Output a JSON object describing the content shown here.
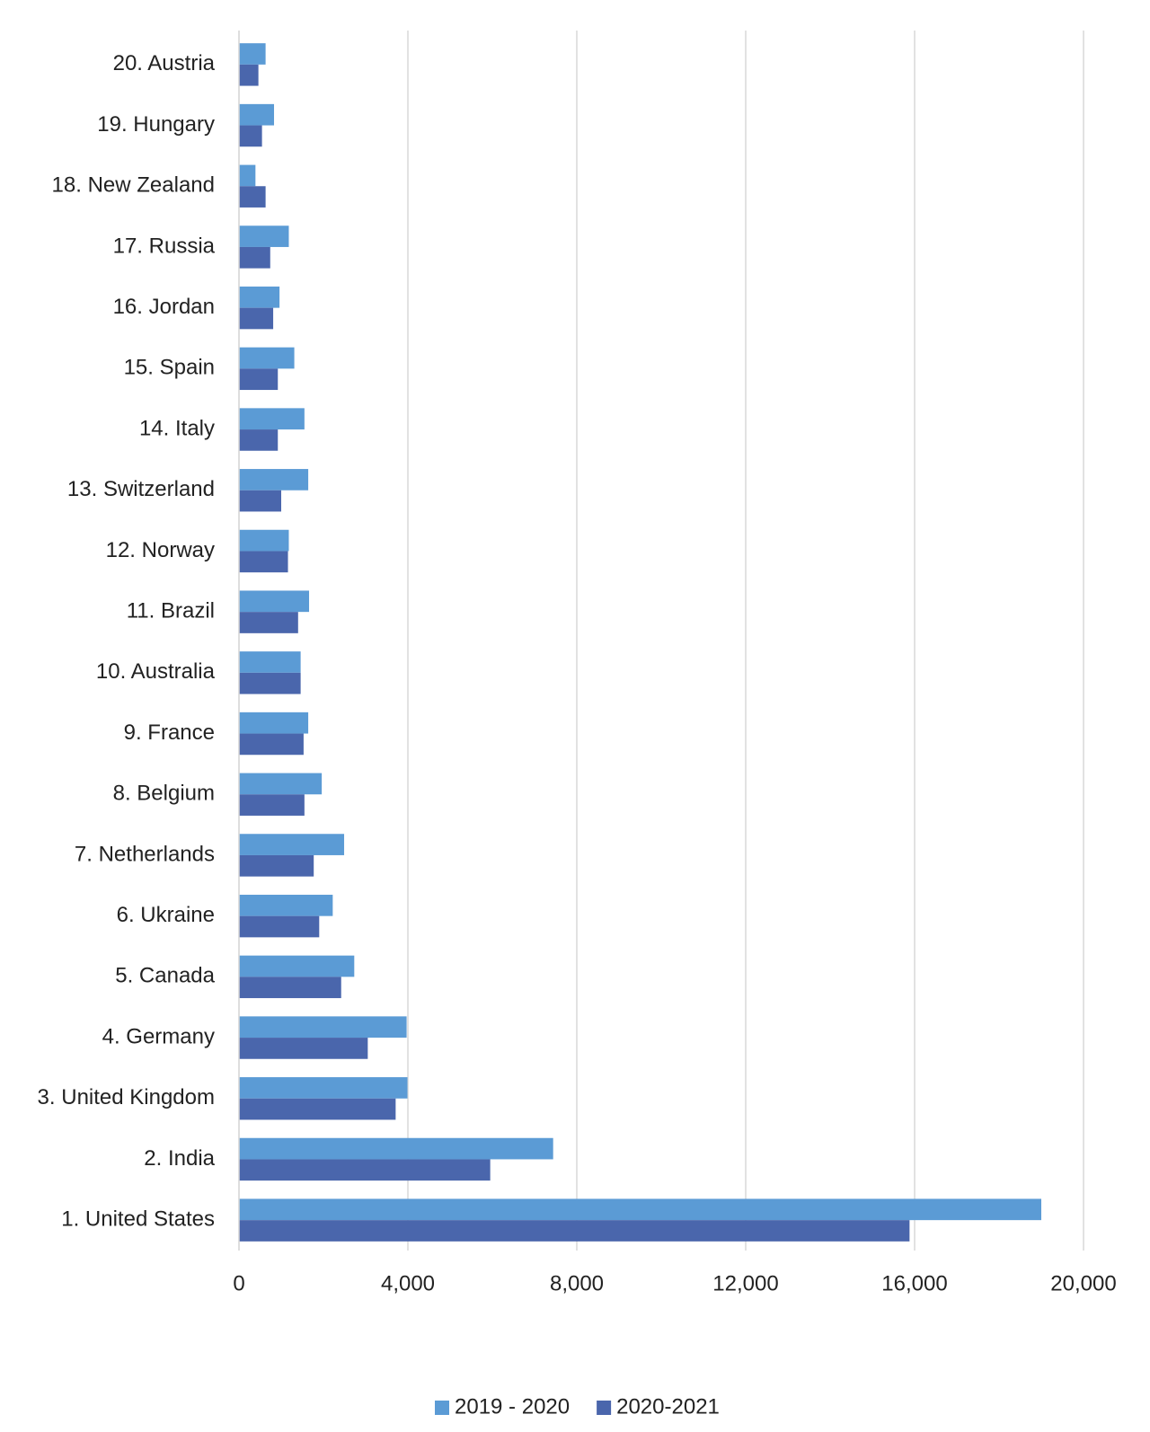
{
  "chart_data": {
    "type": "bar",
    "orientation": "horizontal",
    "categories": [
      "20. Austria",
      "19. Hungary",
      "18. New Zealand",
      "17. Russia",
      "16. Jordan",
      "15. Spain",
      "14. Italy",
      "13. Switzerland",
      "12. Norway",
      "11. Brazil",
      "10. Australia",
      "9. France",
      "8. Belgium",
      "7. Netherlands",
      "6. Ukraine",
      "5. Canada",
      "4. Germany",
      "3. United Kingdom",
      "2. India",
      "1. United States"
    ],
    "series": [
      {
        "name": "2019 - 2020",
        "color": "#5b9bd5",
        "values": [
          630,
          830,
          390,
          1180,
          960,
          1310,
          1550,
          1640,
          1180,
          1660,
          1460,
          1640,
          1960,
          2490,
          2220,
          2730,
          3970,
          3990,
          7440,
          19000
        ]
      },
      {
        "name": "2020-2021",
        "color": "#4a66ac",
        "values": [
          460,
          545,
          630,
          740,
          810,
          920,
          920,
          1000,
          1160,
          1400,
          1460,
          1530,
          1550,
          1770,
          1900,
          2420,
          3050,
          3710,
          5950,
          15880
        ]
      }
    ],
    "xlim": [
      0,
      20000
    ],
    "xticks": [
      0,
      {
        "value": 4000,
        "label": "4,000"
      },
      {
        "value": 8000,
        "label": "8,000"
      },
      {
        "value": 12000,
        "label": "12,000"
      },
      {
        "value": 16000,
        "label": "16,000"
      },
      {
        "value": 20000,
        "label": "20,000"
      }
    ],
    "grid": true,
    "legend": "bottom"
  }
}
